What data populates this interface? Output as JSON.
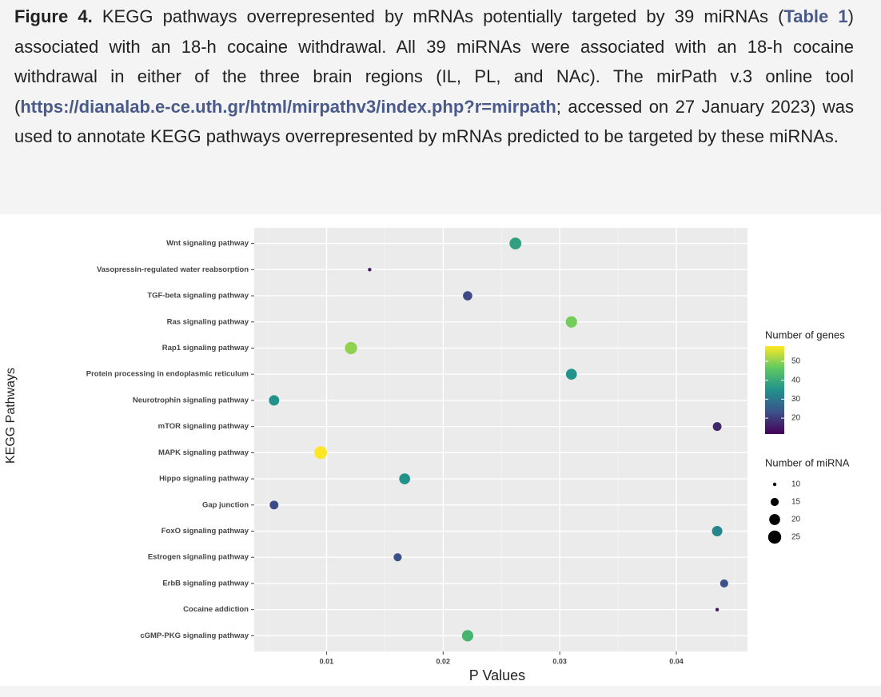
{
  "caption": [
    "Figure 4.",
    " KEGG pathways overrepresented by mRNAs potentially targeted by 39 miRNAs (",
    "Table 1",
    ") associated with an 18-h cocaine withdrawal. All 39 miRNAs were associated with an 18-h cocaine withdrawal in either of the three brain regions (IL, PL, and NAc). The mirPath v.3 online tool (",
    "https://dianalab.e-ce.uth.gr/html/mirpathv3/index.php?r=mirpath",
    "; accessed on 27 January 2023) was used to annotate KEGG pathways overrepresented by mRNAs predicted to be targeted by these miRNAs."
  ],
  "chart_data": {
    "type": "bubble",
    "x_label": "P Values",
    "y_label": "KEGG Pathways",
    "categories": [
      "Wnt signaling pathway",
      "Vasopressin-regulated water reabsorption",
      "TGF-beta signaling pathway",
      "Ras signaling pathway",
      "Rap1 signaling pathway",
      "Protein processing in endoplasmic reticulum",
      "Neurotrophin signaling pathway",
      "mTOR signaling pathway",
      "MAPK signaling pathway",
      "Hippo signaling pathway",
      "Gap junction",
      "FoxO signaling pathway",
      "Estrogen signaling pathway",
      "ErbB signaling pathway",
      "Cocaine addiction",
      "cGMP-PKG signaling pathway"
    ],
    "values": [
      0.0262,
      0.0137,
      0.0221,
      0.031,
      0.0121,
      0.031,
      0.0055,
      0.0435,
      0.0095,
      0.0167,
      0.0055,
      0.0435,
      0.0161,
      0.0441,
      0.0435,
      0.0221
    ],
    "genes": [
      38,
      15,
      22,
      48,
      50,
      35,
      35,
      17,
      58,
      35,
      22,
      33,
      23,
      23,
      14,
      42
    ],
    "mirna": [
      22,
      10,
      17,
      21,
      23,
      20,
      19,
      16,
      24,
      20,
      16,
      19,
      15,
      15,
      10,
      21
    ],
    "xlim": [
      0.0038,
      0.0461
    ],
    "xticks": [
      0.01,
      0.02,
      0.03,
      0.04
    ],
    "color_title": "Number of genes",
    "color_lim": [
      11.6,
      58
    ],
    "color_ticks": [
      20,
      30,
      40,
      50
    ],
    "colormap": [
      "#440154",
      "#3b528b",
      "#21918c",
      "#5ec962",
      "#fde725"
    ],
    "size_title": "Number of miRNA",
    "size_lim": [
      10,
      25
    ],
    "size_ticks": [
      10,
      15,
      20,
      25
    ],
    "grid": true
  }
}
